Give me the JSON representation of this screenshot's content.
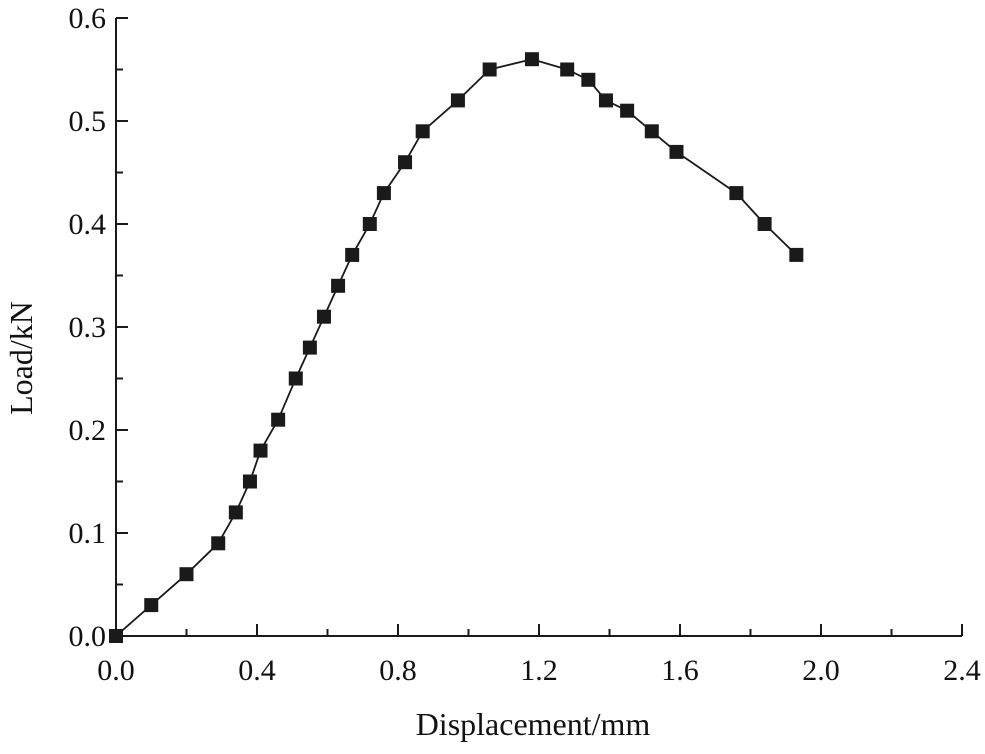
{
  "chart_data": {
    "type": "line",
    "title": "",
    "xlabel": "Displacement/mm",
    "ylabel": "Load/kN",
    "xlim": [
      0.0,
      2.4
    ],
    "ylim": [
      0.0,
      0.6
    ],
    "x_ticks": [
      0.0,
      0.4,
      0.8,
      1.2,
      1.6,
      2.0,
      2.4
    ],
    "x_tick_labels": [
      "0.0",
      "0.4",
      "0.8",
      "1.2",
      "1.6",
      "2.0",
      "2.4"
    ],
    "y_ticks": [
      0.0,
      0.1,
      0.2,
      0.3,
      0.4,
      0.5,
      0.6
    ],
    "y_tick_labels": [
      "0.0",
      "0.1",
      "0.2",
      "0.3",
      "0.4",
      "0.5",
      "0.6"
    ],
    "grid": false,
    "legend": null,
    "marker": "square",
    "line_color": "#1a1a1a",
    "marker_color": "#1a1a1a",
    "series": [
      {
        "x": [
          0.0,
          0.1,
          0.2,
          0.29,
          0.34,
          0.38,
          0.41,
          0.46,
          0.51,
          0.55,
          0.59,
          0.63,
          0.67,
          0.72,
          0.76,
          0.82,
          0.87,
          0.97,
          1.06,
          1.18,
          1.28,
          1.34,
          1.39,
          1.45,
          1.52,
          1.59,
          1.76,
          1.84,
          1.93
        ],
        "y": [
          0.0,
          0.03,
          0.06,
          0.09,
          0.12,
          0.15,
          0.18,
          0.21,
          0.25,
          0.28,
          0.31,
          0.34,
          0.37,
          0.4,
          0.43,
          0.46,
          0.49,
          0.52,
          0.55,
          0.56,
          0.55,
          0.54,
          0.52,
          0.51,
          0.49,
          0.47,
          0.43,
          0.4,
          0.37
        ]
      }
    ]
  }
}
